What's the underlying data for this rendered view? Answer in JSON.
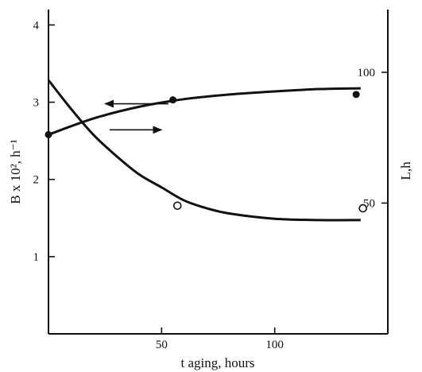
{
  "chart_data": {
    "type": "scatter",
    "xlabel": "t aging, hours",
    "ylabel_left": "B x 10², h⁻¹",
    "ylabel_right": "L,h",
    "x_ticks": [
      50,
      100
    ],
    "y_left_ticks": [
      1,
      2,
      3,
      4
    ],
    "y_right_ticks": [
      50,
      100
    ],
    "xlim": [
      0,
      150
    ],
    "ylim_left": [
      0,
      4.2
    ],
    "ylim_right": [
      0,
      124
    ],
    "series": [
      {
        "axis": "left",
        "marker": "filled-circle",
        "points": [
          {
            "x": 0,
            "y": 2.58
          },
          {
            "x": 55,
            "y": 3.03
          },
          {
            "x": 136,
            "y": 3.1
          }
        ],
        "fit_curve": [
          {
            "x": 0,
            "y": 2.58
          },
          {
            "x": 20,
            "y": 2.79
          },
          {
            "x": 40,
            "y": 2.94
          },
          {
            "x": 60,
            "y": 3.04
          },
          {
            "x": 80,
            "y": 3.1
          },
          {
            "x": 100,
            "y": 3.14
          },
          {
            "x": 120,
            "y": 3.17
          },
          {
            "x": 138,
            "y": 3.18
          }
        ],
        "arrow": {
          "x_from": 53,
          "x_to": 25,
          "y": 2.98
        }
      },
      {
        "axis": "right",
        "marker": "open-circle",
        "points": [
          {
            "x": 57,
            "y": 49
          },
          {
            "x": 139,
            "y": 48
          }
        ],
        "fit_curve": [
          {
            "x": 0,
            "y": 97
          },
          {
            "x": 10,
            "y": 86
          },
          {
            "x": 20,
            "y": 76
          },
          {
            "x": 30,
            "y": 68
          },
          {
            "x": 40,
            "y": 61
          },
          {
            "x": 50,
            "y": 56
          },
          {
            "x": 60,
            "y": 51
          },
          {
            "x": 70,
            "y": 48
          },
          {
            "x": 80,
            "y": 46
          },
          {
            "x": 100,
            "y": 44
          },
          {
            "x": 120,
            "y": 43.5
          },
          {
            "x": 138,
            "y": 43.5
          }
        ],
        "arrow": {
          "x_from": 27,
          "x_to": 50,
          "y": 78
        }
      }
    ],
    "grid": false,
    "legend": "none",
    "colors": {
      "ink": "#111111",
      "background": "#ffffff"
    }
  }
}
